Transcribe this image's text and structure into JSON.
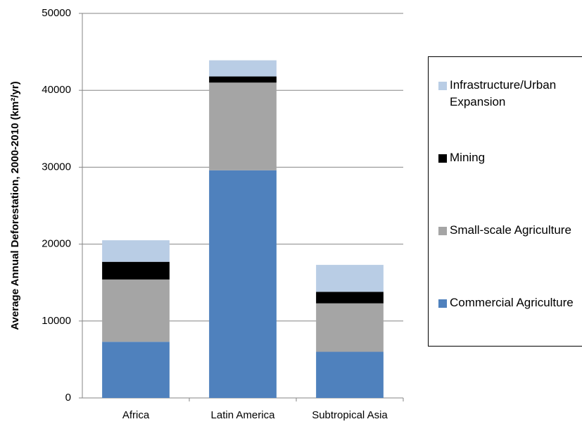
{
  "chart_data": {
    "type": "stacked-bar",
    "y_label": "Average Annual Deforestation,    2000-2010 (km²/yr)",
    "categories": [
      "Africa",
      "Latin America",
      "Subtropical Asia"
    ],
    "series": [
      {
        "name": "Commercial Agriculture",
        "color": "#4f81bd",
        "values": [
          7300,
          29600,
          6000
        ]
      },
      {
        "name": "Small-scale Agriculture",
        "color": "#a5a5a5",
        "values": [
          8100,
          11400,
          6300
        ]
      },
      {
        "name": "Mining",
        "color": "#000000",
        "values": [
          2300,
          800,
          1500
        ]
      },
      {
        "name": "Infrastructure/Urban Expansion",
        "color": "#b9cde5",
        "values": [
          2800,
          2100,
          3500
        ]
      }
    ],
    "ylim": [
      0,
      50000
    ],
    "yticks": [
      0,
      10000,
      20000,
      30000,
      40000,
      50000
    ],
    "grid": true,
    "legend": "right"
  }
}
